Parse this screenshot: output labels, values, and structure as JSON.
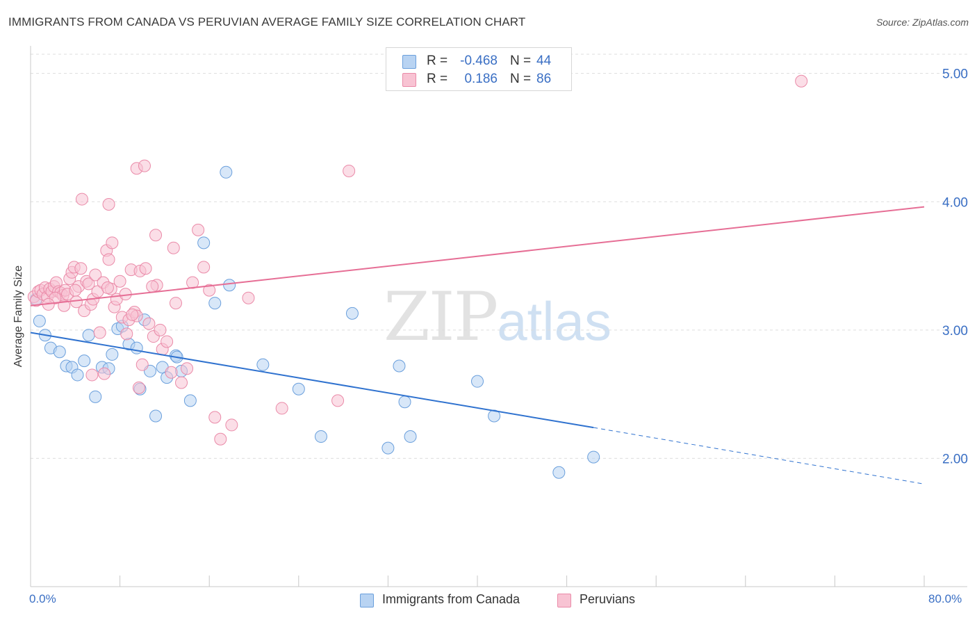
{
  "title": "IMMIGRANTS FROM CANADA VS PERUVIAN AVERAGE FAMILY SIZE CORRELATION CHART",
  "source": "Source: ZipAtlas.com",
  "watermark": {
    "part1": "ZIP",
    "part2": "atlas"
  },
  "legend_top": {
    "rows": [
      {
        "r_label": "R =",
        "r_value": "-0.468",
        "n_label": "N =",
        "n_value": "44"
      },
      {
        "r_label": "R =",
        "r_value": "0.186",
        "n_label": "N =",
        "n_value": "86"
      }
    ]
  },
  "legend_bottom": [
    "Immigrants from Canada",
    "Peruvians"
  ],
  "x_tick_labels": {
    "left": "0.0%",
    "right": "80.0%"
  },
  "colors": {
    "canada_fill": "#b8d3f2",
    "canada_stroke": "#6a9fdc",
    "canada_line": "#2f72cf",
    "peru_fill": "#f8c3d3",
    "peru_stroke": "#ea8aa8",
    "peru_line": "#e66e95",
    "value_text": "#3a6fc4",
    "grid": "#dddddd"
  },
  "chart_data": {
    "type": "scatter",
    "title": "IMMIGRANTS FROM CANADA VS PERUVIAN AVERAGE FAMILY SIZE CORRELATION CHART",
    "xlabel": "",
    "ylabel": "Average Family Size",
    "xlim": [
      0,
      80
    ],
    "ylim": [
      1.0,
      5.15
    ],
    "x_unit": "%",
    "y_ticks": [
      2.0,
      3.0,
      4.0,
      5.0
    ],
    "y_tick_labels": [
      "2.00",
      "3.00",
      "4.00",
      "5.00"
    ],
    "x_ticks": [
      0,
      8,
      16,
      24,
      32,
      40,
      48,
      56,
      64,
      72,
      80
    ],
    "grid": "horizontal dashed",
    "legend_position": "bottom",
    "series": [
      {
        "name": "Immigrants from Canada",
        "r": -0.468,
        "n": 44,
        "trend": {
          "x0": 0,
          "y0": 2.98,
          "x1": 50.4,
          "y1": 2.24,
          "dashed_to_x": 80,
          "dashed_to_y": 1.8
        },
        "points": [
          [
            0.5,
            3.24
          ],
          [
            0.8,
            3.07
          ],
          [
            1.3,
            2.96
          ],
          [
            1.8,
            2.86
          ],
          [
            2.6,
            2.83
          ],
          [
            3.2,
            2.72
          ],
          [
            3.7,
            2.71
          ],
          [
            4.2,
            2.65
          ],
          [
            4.8,
            2.76
          ],
          [
            5.2,
            2.96
          ],
          [
            5.8,
            2.48
          ],
          [
            6.4,
            2.71
          ],
          [
            7.0,
            2.7
          ],
          [
            7.3,
            2.81
          ],
          [
            7.8,
            3.01
          ],
          [
            8.2,
            3.03
          ],
          [
            8.8,
            2.89
          ],
          [
            9.5,
            2.86
          ],
          [
            9.8,
            2.54
          ],
          [
            10.2,
            3.08
          ],
          [
            10.7,
            2.68
          ],
          [
            11.2,
            2.33
          ],
          [
            11.8,
            2.71
          ],
          [
            12.2,
            2.63
          ],
          [
            13.0,
            2.8
          ],
          [
            13.5,
            2.68
          ],
          [
            14.3,
            2.45
          ],
          [
            15.5,
            3.68
          ],
          [
            16.5,
            3.21
          ],
          [
            17.5,
            4.23
          ],
          [
            17.8,
            3.35
          ],
          [
            20.8,
            2.73
          ],
          [
            24.0,
            2.54
          ],
          [
            26.0,
            2.17
          ],
          [
            28.8,
            3.13
          ],
          [
            32.0,
            2.08
          ],
          [
            33.0,
            2.72
          ],
          [
            33.5,
            2.44
          ],
          [
            34.0,
            2.17
          ],
          [
            40.0,
            2.6
          ],
          [
            41.5,
            2.33
          ],
          [
            47.3,
            1.89
          ],
          [
            50.4,
            2.01
          ],
          [
            13.1,
            2.79
          ]
        ]
      },
      {
        "name": "Peruvians",
        "r": 0.186,
        "n": 86,
        "trend": {
          "x0": 0,
          "y0": 3.19,
          "x1": 80,
          "y1": 3.96
        },
        "points": [
          [
            0.3,
            3.26
          ],
          [
            0.5,
            3.23
          ],
          [
            0.7,
            3.3
          ],
          [
            0.9,
            3.31
          ],
          [
            1.1,
            3.28
          ],
          [
            1.3,
            3.33
          ],
          [
            1.5,
            3.26
          ],
          [
            1.7,
            3.32
          ],
          [
            1.9,
            3.3
          ],
          [
            2.1,
            3.34
          ],
          [
            2.3,
            3.37
          ],
          [
            2.5,
            3.3
          ],
          [
            2.7,
            3.29
          ],
          [
            2.9,
            3.27
          ],
          [
            3.1,
            3.31
          ],
          [
            3.3,
            3.28
          ],
          [
            3.5,
            3.4
          ],
          [
            3.7,
            3.45
          ],
          [
            3.9,
            3.49
          ],
          [
            4.1,
            3.22
          ],
          [
            4.3,
            3.34
          ],
          [
            4.5,
            3.48
          ],
          [
            4.8,
            3.15
          ],
          [
            5.0,
            3.38
          ],
          [
            5.2,
            3.36
          ],
          [
            5.4,
            3.2
          ],
          [
            5.6,
            3.24
          ],
          [
            5.8,
            3.43
          ],
          [
            6.0,
            3.3
          ],
          [
            6.2,
            2.98
          ],
          [
            6.5,
            3.37
          ],
          [
            6.8,
            3.62
          ],
          [
            7.0,
            3.55
          ],
          [
            7.2,
            3.32
          ],
          [
            7.5,
            3.18
          ],
          [
            7.7,
            3.24
          ],
          [
            8.0,
            3.38
          ],
          [
            8.2,
            3.1
          ],
          [
            8.5,
            3.28
          ],
          [
            8.8,
            3.08
          ],
          [
            9.0,
            3.47
          ],
          [
            9.3,
            3.14
          ],
          [
            9.5,
            3.11
          ],
          [
            9.8,
            3.46
          ],
          [
            10.0,
            2.73
          ],
          [
            10.3,
            3.48
          ],
          [
            10.6,
            3.05
          ],
          [
            11.0,
            2.95
          ],
          [
            11.3,
            3.35
          ],
          [
            11.8,
            2.85
          ],
          [
            12.2,
            2.91
          ],
          [
            12.6,
            2.67
          ],
          [
            13.0,
            3.21
          ],
          [
            13.5,
            2.59
          ],
          [
            14.0,
            2.7
          ],
          [
            14.5,
            3.37
          ],
          [
            15.0,
            3.78
          ],
          [
            15.5,
            3.49
          ],
          [
            16.0,
            3.31
          ],
          [
            16.5,
            2.32
          ],
          [
            17.0,
            2.15
          ],
          [
            18.0,
            2.26
          ],
          [
            19.5,
            3.25
          ],
          [
            22.5,
            2.39
          ],
          [
            27.5,
            2.45
          ],
          [
            28.5,
            4.24
          ],
          [
            4.6,
            4.02
          ],
          [
            7.0,
            3.98
          ],
          [
            9.5,
            4.26
          ],
          [
            10.2,
            4.28
          ],
          [
            11.2,
            3.74
          ],
          [
            7.3,
            3.68
          ],
          [
            69.0,
            4.94
          ],
          [
            4.0,
            3.31
          ],
          [
            5.5,
            2.65
          ],
          [
            3.0,
            3.19
          ],
          [
            8.6,
            2.97
          ],
          [
            9.7,
            2.55
          ],
          [
            6.6,
            2.66
          ],
          [
            12.8,
            3.64
          ],
          [
            10.9,
            3.34
          ],
          [
            2.2,
            3.25
          ],
          [
            1.6,
            3.2
          ],
          [
            6.9,
            3.33
          ],
          [
            9.1,
            3.12
          ],
          [
            11.6,
            3.0
          ]
        ]
      }
    ]
  }
}
